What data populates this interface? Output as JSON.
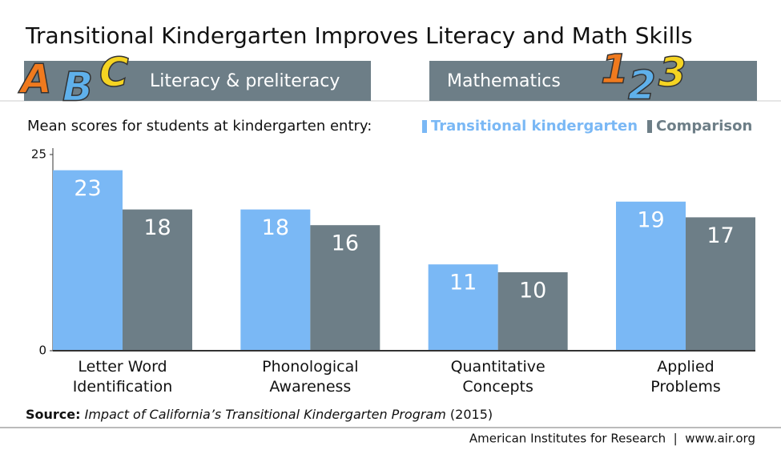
{
  "chart_data": {
    "type": "bar",
    "title": "Transitional Kindergarten Improves Literacy and Math Skills",
    "panels": [
      "Literacy & preliteracy",
      "Mathematics"
    ],
    "decor_letters": [
      "A",
      "B",
      "C"
    ],
    "decor_digits": [
      "1",
      "2",
      "3"
    ],
    "subtitle": "Mean scores for students at kindergarten entry:",
    "categories": [
      "Letter Word\nIdentification",
      "Phonological\nAwareness",
      "Quantitative\nConcepts",
      "Applied\nProblems"
    ],
    "series": [
      {
        "name": "Transitional kindergarten",
        "color": "#7ab8f5",
        "values": [
          23,
          18,
          11,
          19
        ]
      },
      {
        "name": "Comparison",
        "color": "#6d7e87",
        "values": [
          18,
          16,
          10,
          17
        ]
      }
    ],
    "ylim": [
      0,
      25
    ],
    "yticks": [
      0,
      25
    ],
    "grid": false,
    "source": {
      "label": "Source:",
      "title": "Impact of California’s Transitional Kindergarten Program",
      "year": "(2015)"
    },
    "footer": "American Institutes for Research  |  www.air.org"
  }
}
